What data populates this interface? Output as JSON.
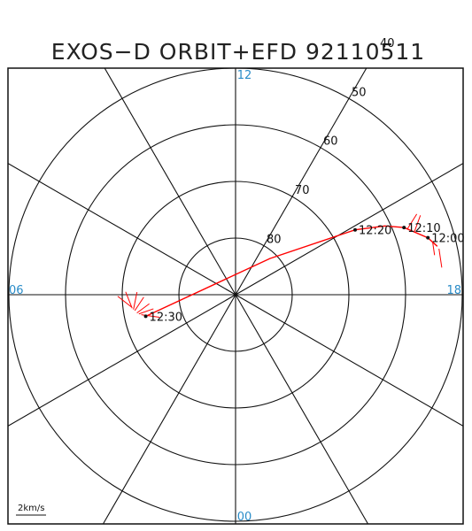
{
  "chart_data": {
    "type": "polar-orbit",
    "title": "EXOS−D ORBIT+EFD 92110511",
    "mlt_labels": [
      {
        "hour": 12,
        "text": "12"
      },
      {
        "hour": 18,
        "text": "18"
      },
      {
        "hour": 6,
        "text": "06"
      },
      {
        "hour": 0,
        "text": "00"
      }
    ],
    "latitude_circles": [
      80,
      70,
      60,
      50
    ],
    "latitude_labels": [
      {
        "lat": 80,
        "text": "80"
      },
      {
        "lat": 70,
        "text": "70"
      },
      {
        "lat": 60,
        "text": "60"
      },
      {
        "lat": 50,
        "text": "50"
      },
      {
        "lat": 40,
        "text": "40"
      }
    ],
    "colatitude_range_deg": [
      0,
      48
    ],
    "radial_lines_every_hours": 2,
    "orbit": {
      "color": "#ff0000",
      "points": [
        {
          "mlt": 17.1,
          "lat": 53.4
        },
        {
          "mlt": 16.9,
          "lat": 54.6
        },
        {
          "mlt": 16.55,
          "lat": 58.0
        },
        {
          "mlt": 16.35,
          "lat": 61.0
        },
        {
          "mlt": 16.1,
          "lat": 66.0
        },
        {
          "mlt": 14.9,
          "lat": 81.2
        },
        {
          "mlt": 5.1,
          "lat": 73.7
        }
      ]
    },
    "time_marks": [
      {
        "text": "12:00",
        "mlt": 16.9,
        "lat": 54.6
      },
      {
        "text": "12:10",
        "mlt": 16.55,
        "lat": 58.0
      },
      {
        "text": "12:20",
        "mlt": 16.1,
        "lat": 66.0
      },
      {
        "text": "12:30",
        "mlt": 5.1,
        "lat": 73.7
      }
    ],
    "efd_vectors": [
      {
        "mlt": 17.15,
        "lat": 53.2,
        "dmlt": 0.35,
        "dlat": 0.1
      },
      {
        "mlt": 17.0,
        "lat": 54.0,
        "dmlt": 0.25,
        "dlat": 0.2
      },
      {
        "mlt": 16.7,
        "lat": 56.5,
        "dmlt": -0.25,
        "dlat": -2.0
      },
      {
        "mlt": 16.6,
        "lat": 57.5,
        "dmlt": -0.2,
        "dlat": -2.5
      },
      {
        "mlt": 5.2,
        "lat": 73.0,
        "dmlt": -0.3,
        "dlat": 3.0
      },
      {
        "mlt": 5.25,
        "lat": 72.6,
        "dmlt": 0.1,
        "dlat": 2.7
      },
      {
        "mlt": 5.3,
        "lat": 72.3,
        "dmlt": 0.3,
        "dlat": 2.4
      },
      {
        "mlt": 5.4,
        "lat": 72.0,
        "dmlt": 0.5,
        "dlat": 1.8
      },
      {
        "mlt": 5.45,
        "lat": 71.8,
        "dmlt": 0.65,
        "dlat": 0.8
      },
      {
        "mlt": 5.5,
        "lat": 71.6,
        "dmlt": 0.6,
        "dlat": -1.0
      },
      {
        "mlt": 5.55,
        "lat": 71.5,
        "dmlt": 0.4,
        "dlat": -2.3
      }
    ],
    "scale_label": "2km/s"
  }
}
